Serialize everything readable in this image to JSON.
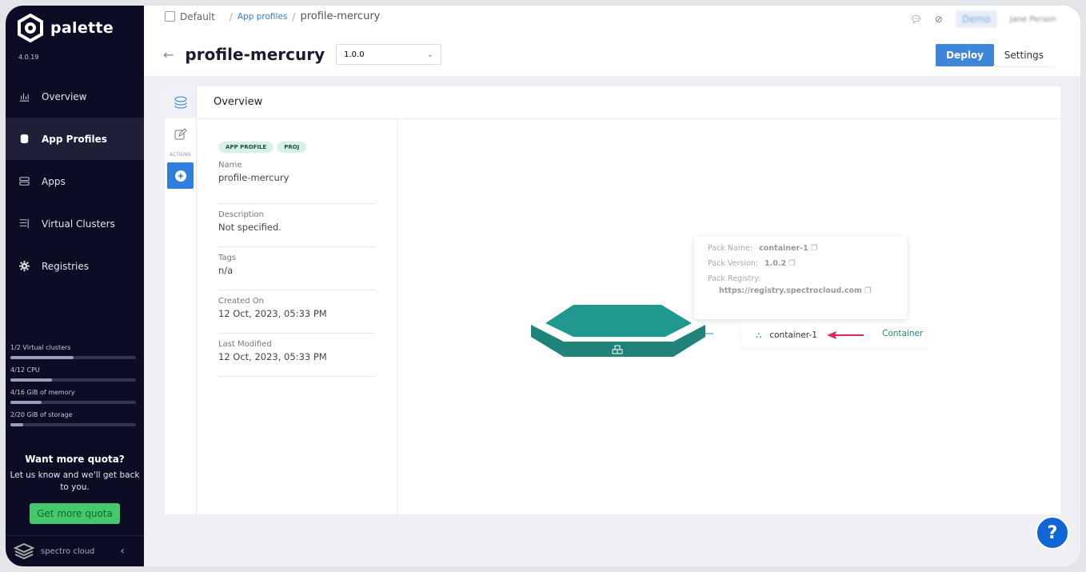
{
  "app": {
    "name": "palette",
    "version": "4.0.19"
  },
  "sidebar": {
    "items": [
      {
        "label": "Overview",
        "icon": "chart-icon"
      },
      {
        "label": "App Profiles",
        "icon": "database-icon",
        "active": true
      },
      {
        "label": "Apps",
        "icon": "server-icon"
      },
      {
        "label": "Virtual Clusters",
        "icon": "list-icon"
      },
      {
        "label": "Registries",
        "icon": "gear-icon"
      }
    ],
    "quota": [
      {
        "label": "1/2 Virtual clusters",
        "fraction": 0.5
      },
      {
        "label": "4/12 CPU",
        "fraction": 0.333
      },
      {
        "label": "4/16 GiB of memory",
        "fraction": 0.25
      },
      {
        "label": "2/20 GiB of storage",
        "fraction": 0.1
      }
    ],
    "more_title": "Want more quota?",
    "more_text": "Let us know and we'll get back to you.",
    "more_button": "Get more quota",
    "footer": "spectro cloud"
  },
  "header": {
    "breadcrumb": [
      "Default",
      "App profiles",
      "profile-mercury"
    ],
    "title": "profile-mercury",
    "version": "1.0.0",
    "org": "Demo",
    "user": "Jane Person",
    "deploy": "Deploy",
    "settings": "Settings"
  },
  "panel": {
    "title": "Overview",
    "actions_label": "ACTIONS",
    "tags": [
      "APP PROFILE",
      "PROJ"
    ],
    "fields": [
      {
        "label": "Name",
        "value": "profile-mercury"
      },
      {
        "label": "Description",
        "value": "Not specified."
      },
      {
        "label": "Tags",
        "value": "n/a"
      },
      {
        "label": "Created On",
        "value": "12 Oct, 2023, 05:33 PM"
      },
      {
        "label": "Last Modified",
        "value": "12 Oct, 2023, 05:33 PM"
      }
    ]
  },
  "diagram": {
    "tooltip": {
      "name_label": "Pack Name:",
      "name": "container-1",
      "version_label": "Pack Version:",
      "version": "1.0.2",
      "registry_label": "Pack Registry:",
      "registry": "https://registry.spectrocloud.com"
    },
    "node": "container-1",
    "node_type": "Container",
    "colors": {
      "layer": "#21988f",
      "arrow": "#e0245e"
    }
  },
  "help": "?"
}
